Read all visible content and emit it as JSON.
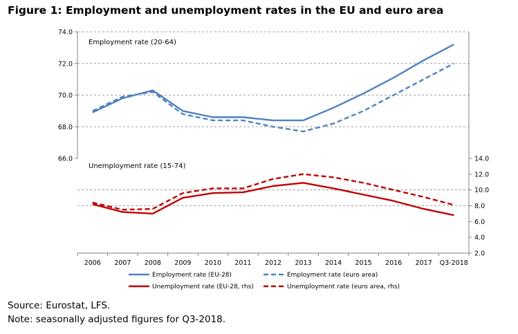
{
  "figure_title": "Figure 1: Employment and unemployment rates in the EU and euro area",
  "footer": {
    "source": "Source: Eurostat, LFS.",
    "note": "Note: seasonally adjusted figures for Q3-2018."
  },
  "colors": {
    "eu28": "#4F81BD",
    "euro_area_employment": "#4F81BD",
    "unemployment": "#C00000",
    "gridline": "#808080",
    "axis": "#808080"
  },
  "chart_data": {
    "type": "line",
    "title": "Figure 1: Employment and unemployment rates in the EU and euro area",
    "categories": [
      "2006",
      "2007",
      "2008",
      "2009",
      "2010",
      "2011",
      "2012",
      "2013",
      "2014",
      "2015",
      "2016",
      "2017",
      "Q3-2018"
    ],
    "panels": {
      "employment_label": "Employment rate (20-64)",
      "unemployment_label": "Unemployment rate (15-74)"
    },
    "left_axis": {
      "range": [
        66.0,
        74.0
      ],
      "ticks": [
        "66.0",
        "68.0",
        "70.0",
        "72.0",
        "74.0"
      ],
      "gridlines": true
    },
    "right_axis": {
      "range": [
        2.0,
        14.0
      ],
      "ticks": [
        "2.0",
        "4.0",
        "6.0",
        "8.0",
        "10.0",
        "12.0",
        "14.0"
      ]
    },
    "series": [
      {
        "name": "Employment rate (EU-28)",
        "axis": "left",
        "style": "solid",
        "color": "#4F81BD",
        "values": [
          68.9,
          69.8,
          70.3,
          69.0,
          68.6,
          68.6,
          68.4,
          68.4,
          69.2,
          70.1,
          71.1,
          72.2,
          73.2
        ]
      },
      {
        "name": "Employment rate (euro area)",
        "axis": "left",
        "style": "dashed",
        "color": "#4F81BD",
        "values": [
          69.0,
          69.9,
          70.2,
          68.8,
          68.4,
          68.4,
          68.0,
          67.7,
          68.2,
          69.0,
          70.0,
          71.0,
          72.0
        ]
      },
      {
        "name": "Unemployment rate (EU-28, rhs)",
        "axis": "right",
        "style": "solid",
        "color": "#C00000",
        "values": [
          8.2,
          7.2,
          7.0,
          9.0,
          9.6,
          9.7,
          10.5,
          10.9,
          10.2,
          9.4,
          8.6,
          7.6,
          6.8
        ]
      },
      {
        "name": "Unemployment rate (euro area, rhs)",
        "axis": "right",
        "style": "dashed",
        "color": "#C00000",
        "values": [
          8.4,
          7.5,
          7.6,
          9.6,
          10.2,
          10.2,
          11.4,
          12.0,
          11.6,
          10.9,
          10.0,
          9.1,
          8.1
        ]
      }
    ],
    "legend": {
      "placement": "bottom",
      "entries": [
        "Employment rate (EU-28)",
        "Employment rate (euro area)",
        "Unemployment rate (EU-28, rhs)",
        "Unemployment rate (euro area, rhs)"
      ]
    }
  }
}
